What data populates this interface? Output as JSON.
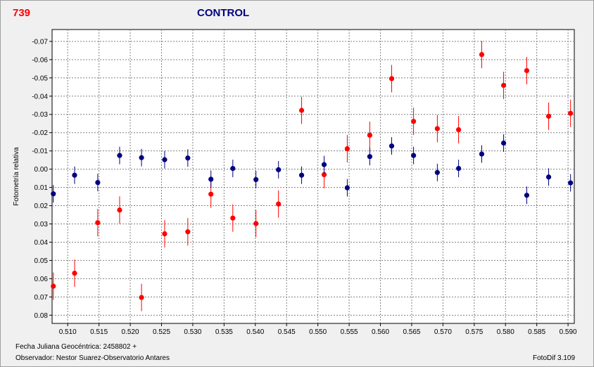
{
  "header": {
    "object_id": "739",
    "title": "CONTROL"
  },
  "footer": {
    "jd_label": "Fecha Juliana Geocéntrica: 2458802 +",
    "observer": "Observador: Nestor Suarez-Observatorio Antares",
    "software": "FotoDif 3.109"
  },
  "colors": {
    "variable": "#ff0000",
    "control": "#000080",
    "frame": "#f0f0f0",
    "grid": "#808080"
  },
  "chart_data": {
    "type": "scatter",
    "ylabel": "Fotometría relativa",
    "xlim": [
      0.5075,
      0.591
    ],
    "ylim": [
      -0.0765,
      0.0845
    ],
    "y_inverted": true,
    "grid": true,
    "x_ticks": [
      "0.510",
      "0.515",
      "0.520",
      "0.525",
      "0.530",
      "0.535",
      "0.540",
      "0.545",
      "0.550",
      "0.555",
      "0.560",
      "0.565",
      "0.570",
      "0.575",
      "0.580",
      "0.585",
      "0.590"
    ],
    "x_tick_values": [
      0.51,
      0.515,
      0.52,
      0.525,
      0.53,
      0.535,
      0.54,
      0.545,
      0.55,
      0.555,
      0.56,
      0.565,
      0.57,
      0.575,
      0.58,
      0.585,
      0.59
    ],
    "y_ticks": [
      "-0.07",
      "-0.06",
      "-0.05",
      "-0.04",
      "-0.03",
      "-0.02",
      "-0.01",
      "0.00",
      "0.01",
      "0.02",
      "0.03",
      "0.04",
      "0.05",
      "0.06",
      "0.07",
      "0.08"
    ],
    "y_tick_values": [
      -0.07,
      -0.06,
      -0.05,
      -0.04,
      -0.03,
      -0.02,
      -0.01,
      0.0,
      0.01,
      0.02,
      0.03,
      0.04,
      0.05,
      0.06,
      0.07,
      0.08
    ],
    "series": [
      {
        "color": "#ff0000",
        "x": [
          0.5077,
          0.5111,
          0.5148,
          0.5183,
          0.5218,
          0.5255,
          0.5292,
          0.5329,
          0.5364,
          0.5401,
          0.5437,
          0.5474,
          0.551,
          0.5547,
          0.5583,
          0.5618,
          0.5653,
          0.5691,
          0.5725,
          0.5762,
          0.5797,
          0.5834,
          0.5869,
          0.5904
        ],
        "y": [
          0.0641,
          0.057,
          0.0293,
          0.0224,
          0.0703,
          0.0354,
          0.0343,
          0.0137,
          0.0268,
          0.0298,
          0.0191,
          -0.0322,
          0.003,
          -0.0112,
          -0.0186,
          -0.0496,
          -0.0262,
          -0.0222,
          -0.0216,
          -0.0628,
          -0.0459,
          -0.054,
          -0.029,
          -0.0306
        ],
        "err": [
          0.0075,
          0.0075,
          0.0075,
          0.0075,
          0.0075,
          0.0075,
          0.0075,
          0.0075,
          0.0075,
          0.0075,
          0.0075,
          0.0075,
          0.0075,
          0.0075,
          0.0075,
          0.0075,
          0.0075,
          0.0075,
          0.0075,
          0.0075,
          0.0075,
          0.0075,
          0.0075,
          0.0075
        ]
      },
      {
        "color": "#000080",
        "x": [
          0.5077,
          0.5111,
          0.5148,
          0.5183,
          0.5218,
          0.5255,
          0.5292,
          0.5329,
          0.5364,
          0.5401,
          0.5437,
          0.5474,
          0.551,
          0.5547,
          0.5583,
          0.5618,
          0.5653,
          0.5691,
          0.5725,
          0.5762,
          0.5797,
          0.5834,
          0.5869,
          0.5904
        ],
        "y": [
          0.0135,
          0.0033,
          0.0073,
          -0.0075,
          -0.0063,
          -0.0052,
          -0.0061,
          0.0055,
          -0.0004,
          0.0057,
          0.0003,
          0.0033,
          -0.0025,
          0.0102,
          -0.0069,
          -0.0127,
          -0.0075,
          0.0018,
          -0.0004,
          -0.0083,
          -0.0143,
          0.0143,
          0.0043,
          0.0075
        ],
        "err": [
          0.0048,
          0.0048,
          0.0048,
          0.0048,
          0.0048,
          0.0048,
          0.0048,
          0.0048,
          0.0048,
          0.0048,
          0.0048,
          0.0048,
          0.0048,
          0.0048,
          0.0048,
          0.0048,
          0.0048,
          0.0048,
          0.0048,
          0.0048,
          0.0048,
          0.0048,
          0.0048,
          0.0048
        ]
      }
    ]
  }
}
